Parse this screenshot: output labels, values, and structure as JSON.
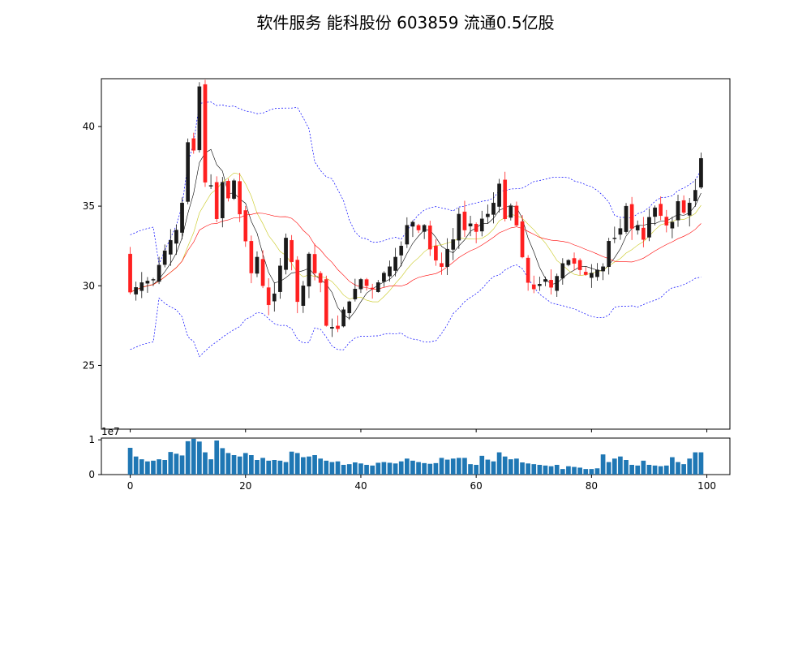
{
  "title": "软件服务 能科股份 603859 流通0.5亿股",
  "colors": {
    "up_candle": "#ff2020",
    "down_candle": "#1a1a1a",
    "ma_short": "#000000",
    "ma_mid": "#c8c81e",
    "ma_long": "#ff0000",
    "boll": "#0000ff",
    "volume_bar": "#1f77b4"
  },
  "chart_data": [
    {
      "type": "candlestick",
      "panel": "price",
      "ylim": [
        21,
        43
      ],
      "xlim": [
        -5,
        104
      ],
      "y_ticks": [
        25,
        30,
        35,
        40
      ],
      "x_ticks": [
        0,
        20,
        40,
        60,
        80,
        100
      ],
      "grid": false,
      "anchors_close": [
        [
          0,
          29.6
        ],
        [
          2,
          30.2
        ],
        [
          4,
          30.4
        ],
        [
          6,
          32.2
        ],
        [
          8,
          33.5
        ],
        [
          9,
          35.2
        ],
        [
          10,
          39.0
        ],
        [
          11,
          38.5
        ],
        [
          12,
          42.5
        ],
        [
          13,
          36.5
        ],
        [
          14,
          36.3
        ],
        [
          15,
          34.2
        ],
        [
          16,
          36.5
        ],
        [
          17,
          35.5
        ],
        [
          18,
          36.6
        ],
        [
          19,
          34.5
        ],
        [
          20,
          32.8
        ],
        [
          21,
          30.8
        ],
        [
          22,
          31.8
        ],
        [
          23,
          30.0
        ],
        [
          24,
          28.8
        ],
        [
          25,
          29.5
        ],
        [
          27,
          33.0
        ],
        [
          28,
          31.5
        ],
        [
          29,
          29.0
        ],
        [
          30,
          30.0
        ],
        [
          31,
          32.0
        ],
        [
          32,
          30.8
        ],
        [
          33,
          30.2
        ],
        [
          34,
          27.5
        ],
        [
          35,
          27.4
        ],
        [
          36,
          27.3
        ],
        [
          37,
          28.5
        ],
        [
          38,
          29.0
        ],
        [
          39,
          29.8
        ],
        [
          40,
          30.4
        ],
        [
          41,
          30.0
        ],
        [
          42,
          29.8
        ],
        [
          43,
          30.2
        ],
        [
          44,
          30.8
        ],
        [
          45,
          31.2
        ],
        [
          46,
          31.8
        ],
        [
          47,
          32.5
        ],
        [
          48,
          33.8
        ],
        [
          49,
          34.0
        ],
        [
          50,
          33.5
        ],
        [
          51,
          33.8
        ],
        [
          52,
          32.3
        ],
        [
          53,
          31.6
        ],
        [
          54,
          31.2
        ],
        [
          55,
          32.3
        ],
        [
          56,
          32.9
        ],
        [
          57,
          34.5
        ],
        [
          58,
          33.5
        ],
        [
          59,
          33.9
        ],
        [
          60,
          33.4
        ],
        [
          61,
          34.2
        ],
        [
          62,
          34.5
        ],
        [
          63,
          35.2
        ],
        [
          64,
          36.4
        ],
        [
          65,
          34.2
        ],
        [
          66,
          35.0
        ],
        [
          67,
          33.8
        ],
        [
          68,
          31.8
        ],
        [
          69,
          30.2
        ],
        [
          70,
          29.8
        ],
        [
          71,
          30.1
        ],
        [
          72,
          30.4
        ],
        [
          73,
          29.9
        ],
        [
          74,
          30.6
        ],
        [
          75,
          31.4
        ],
        [
          76,
          31.6
        ],
        [
          77,
          31.4
        ],
        [
          78,
          31.0
        ],
        [
          79,
          30.7
        ],
        [
          80,
          30.8
        ],
        [
          81,
          31.0
        ],
        [
          82,
          31.2
        ],
        [
          83,
          32.8
        ],
        [
          84,
          33.0
        ],
        [
          85,
          33.6
        ],
        [
          86,
          35.0
        ],
        [
          87,
          33.6
        ],
        [
          88,
          33.8
        ],
        [
          89,
          32.9
        ],
        [
          90,
          34.3
        ],
        [
          91,
          34.9
        ],
        [
          92,
          34.4
        ],
        [
          93,
          33.8
        ],
        [
          94,
          34.0
        ],
        [
          95,
          35.3
        ],
        [
          96,
          34.6
        ],
        [
          97,
          35.2
        ],
        [
          98,
          36.0
        ],
        [
          99,
          38.0
        ]
      ],
      "moving_averages": [
        {
          "window": 5,
          "color": "#000000"
        },
        {
          "window": 10,
          "color": "#c8c81e"
        },
        {
          "window": 20,
          "color": "#ff0000"
        }
      ],
      "bollinger": {
        "window": 20,
        "k": 2,
        "color": "#0000ff",
        "style": "dashed"
      }
    },
    {
      "type": "bar",
      "panel": "volume",
      "scale_label": "1e7",
      "ylim": [
        0,
        1.05
      ],
      "y_ticks": [
        0,
        1
      ],
      "x_ticks": [
        0,
        20,
        40,
        60,
        80,
        100
      ],
      "x_tick_labels": [
        "0",
        "20",
        "40",
        "60",
        "80",
        "100"
      ],
      "values": [
        0.77,
        0.52,
        0.44,
        0.38,
        0.4,
        0.44,
        0.42,
        0.65,
        0.6,
        0.55,
        0.96,
        1.03,
        0.95,
        0.64,
        0.44,
        0.98,
        0.76,
        0.62,
        0.56,
        0.52,
        0.62,
        0.56,
        0.42,
        0.48,
        0.4,
        0.42,
        0.4,
        0.36,
        0.66,
        0.62,
        0.5,
        0.52,
        0.56,
        0.46,
        0.4,
        0.36,
        0.38,
        0.28,
        0.3,
        0.35,
        0.32,
        0.28,
        0.26,
        0.34,
        0.36,
        0.34,
        0.32,
        0.38,
        0.46,
        0.4,
        0.36,
        0.33,
        0.31,
        0.33,
        0.48,
        0.43,
        0.46,
        0.48,
        0.48,
        0.3,
        0.28,
        0.54,
        0.43,
        0.38,
        0.64,
        0.52,
        0.44,
        0.46,
        0.35,
        0.32,
        0.3,
        0.28,
        0.26,
        0.24,
        0.28,
        0.16,
        0.24,
        0.22,
        0.2,
        0.16,
        0.16,
        0.18,
        0.58,
        0.36,
        0.46,
        0.52,
        0.42,
        0.28,
        0.26,
        0.4,
        0.28,
        0.26,
        0.24,
        0.26,
        0.5,
        0.36,
        0.3,
        0.46,
        0.64,
        0.64
      ]
    }
  ]
}
